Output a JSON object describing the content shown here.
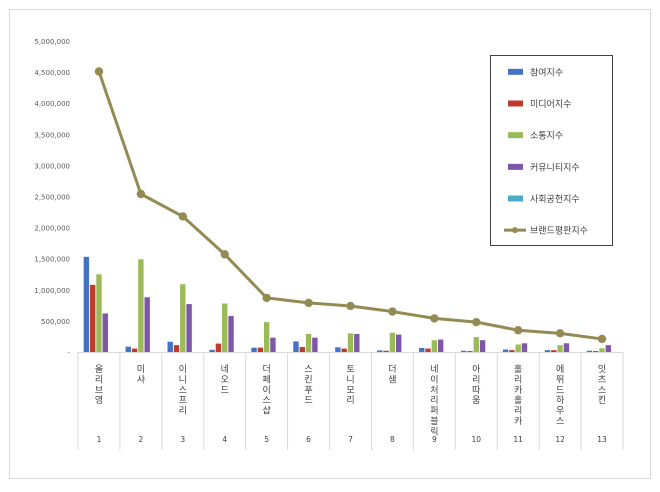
{
  "chart_data": {
    "type": "bar",
    "title": "",
    "xlabel": "",
    "ylabel": "",
    "ylim": [
      0,
      5000000
    ],
    "y_ticks": [
      "-",
      "500,000",
      "1,000,000",
      "1,500,000",
      "2,000,000",
      "2,500,000",
      "3,000,000",
      "3,500,000",
      "4,000,000",
      "4,500,000",
      "5,000,000"
    ],
    "grid": false,
    "legend_position": "top-right",
    "categories": [
      {
        "rank": "1",
        "name": "올리브영"
      },
      {
        "rank": "2",
        "name": "미샤"
      },
      {
        "rank": "3",
        "name": "이니스프리"
      },
      {
        "rank": "4",
        "name": "네오드"
      },
      {
        "rank": "5",
        "name": "더페이스샵"
      },
      {
        "rank": "6",
        "name": "스킨푸드"
      },
      {
        "rank": "7",
        "name": "토니모리"
      },
      {
        "rank": "8",
        "name": "더샘"
      },
      {
        "rank": "9",
        "name": "네이처리퍼블릭"
      },
      {
        "rank": "10",
        "name": "아리따움"
      },
      {
        "rank": "11",
        "name": "홀리카홀리카"
      },
      {
        "rank": "12",
        "name": "에뛰드하우스"
      },
      {
        "rank": "13",
        "name": "잇츠스킨"
      }
    ],
    "series": [
      {
        "name": "참여지수",
        "color": "#4472C4",
        "kind": "bar",
        "values": [
          1530000,
          85000,
          165000,
          35000,
          70000,
          170000,
          75000,
          25000,
          65000,
          20000,
          40000,
          30000,
          20000
        ]
      },
      {
        "name": "미디어지수",
        "color": "#C0392B",
        "kind": "bar",
        "values": [
          1080000,
          55000,
          110000,
          135000,
          70000,
          80000,
          55000,
          20000,
          55000,
          15000,
          30000,
          30000,
          15000
        ]
      },
      {
        "name": "소통지수",
        "color": "#9BBB59",
        "kind": "bar",
        "values": [
          1250000,
          1490000,
          1090000,
          780000,
          480000,
          290000,
          300000,
          310000,
          190000,
          240000,
          120000,
          110000,
          60000
        ]
      },
      {
        "name": "커뮤니티지수",
        "color": "#7E57A6",
        "kind": "bar",
        "values": [
          620000,
          880000,
          770000,
          580000,
          230000,
          230000,
          290000,
          280000,
          200000,
          190000,
          140000,
          140000,
          110000
        ]
      },
      {
        "name": "사회공헌지수",
        "color": "#4BACC6",
        "kind": "bar",
        "values": [
          0,
          0,
          0,
          0,
          0,
          0,
          0,
          0,
          0,
          0,
          0,
          0,
          0
        ]
      },
      {
        "name": "브랜드평판지수",
        "color": "#948A54",
        "kind": "line",
        "values": [
          4510000,
          2540000,
          2180000,
          1570000,
          870000,
          790000,
          740000,
          650000,
          540000,
          480000,
          350000,
          300000,
          210000
        ]
      }
    ]
  }
}
